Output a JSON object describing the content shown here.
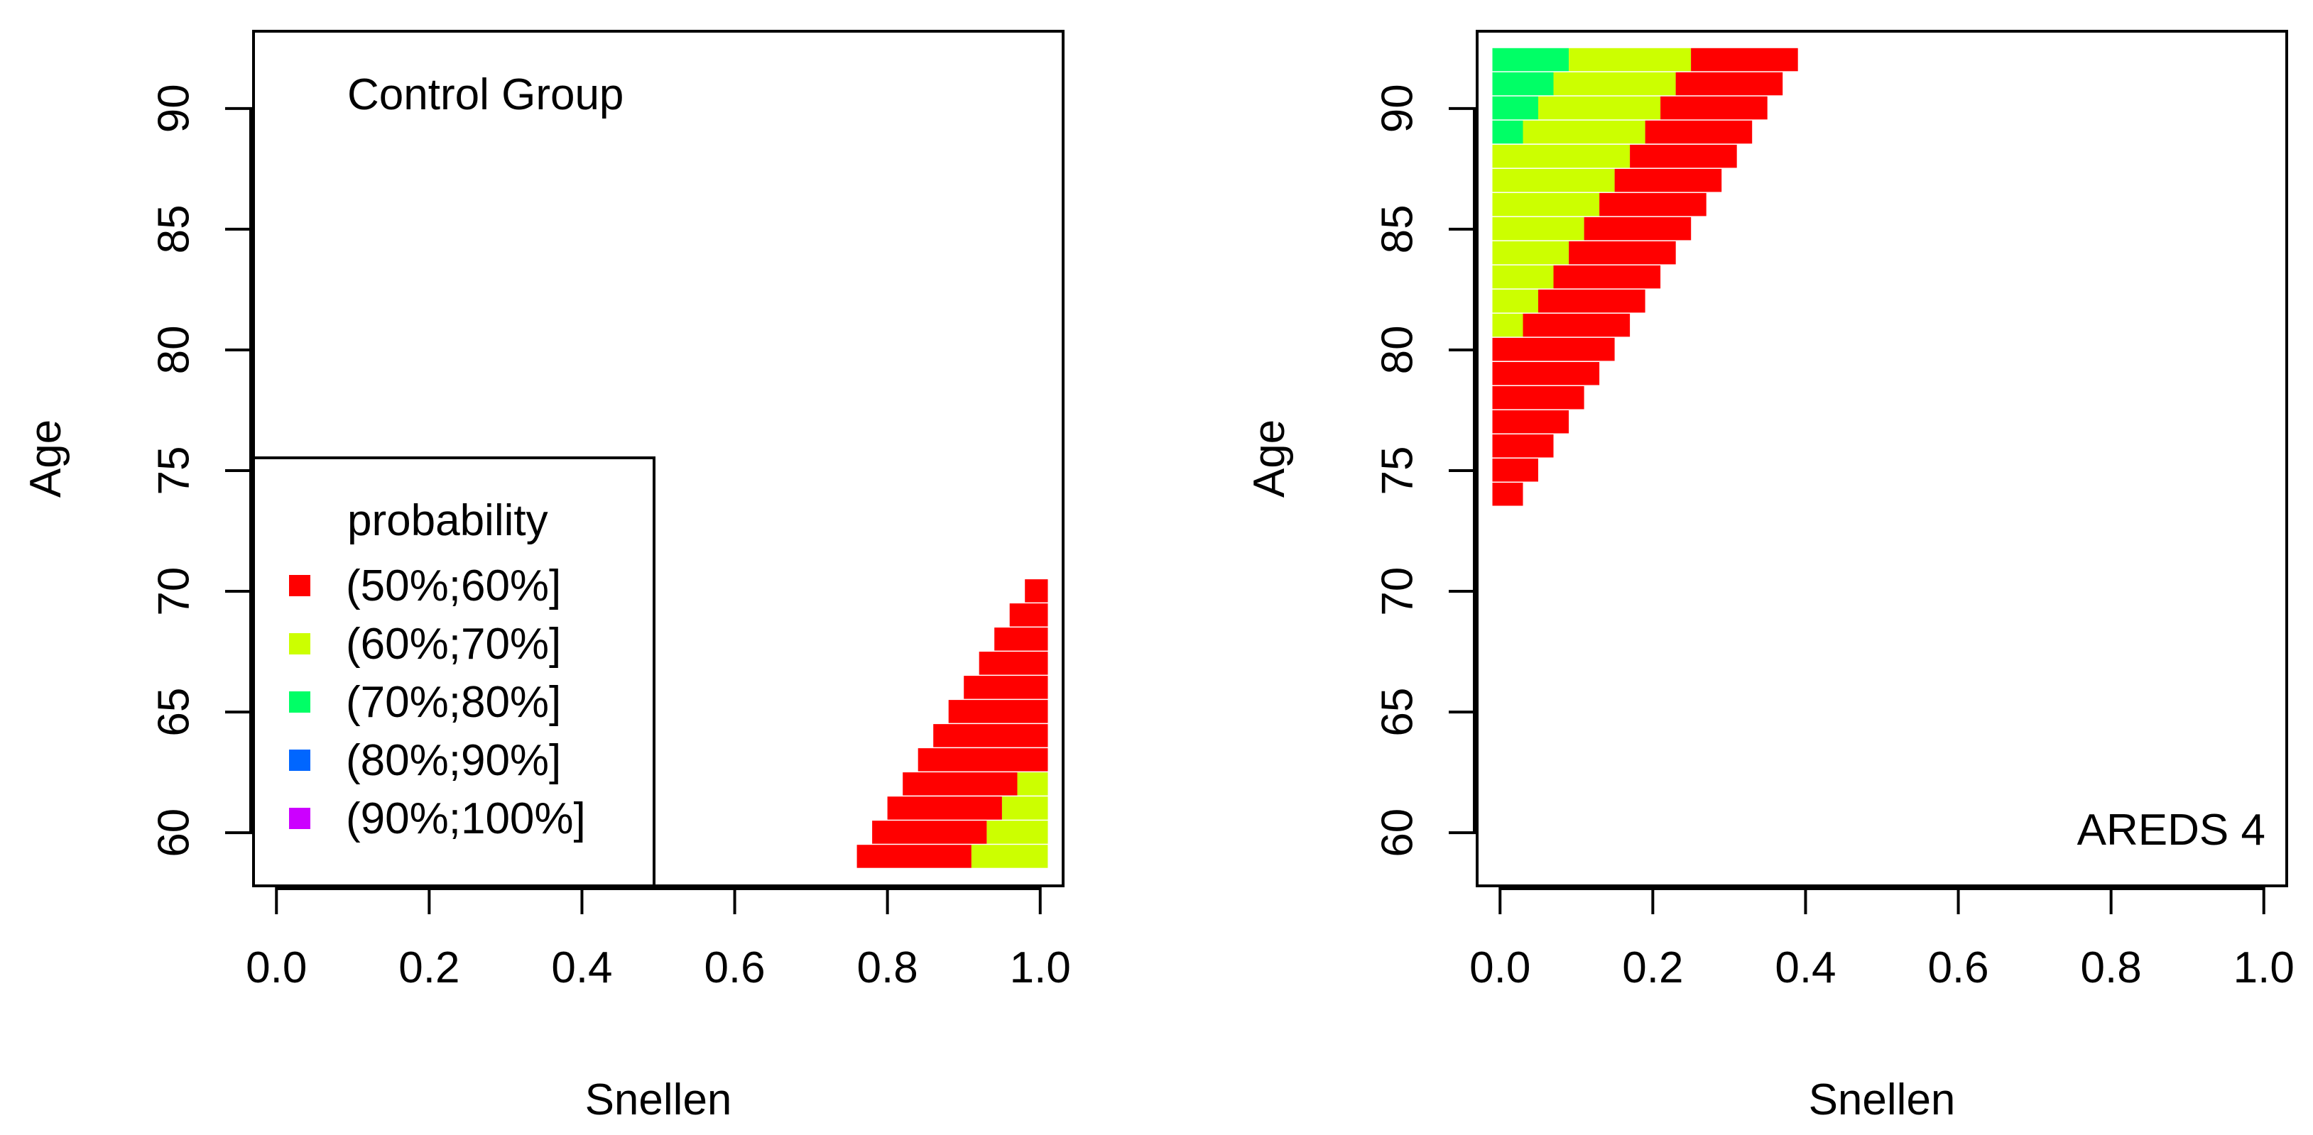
{
  "chart_data": [
    {
      "type": "heatmap",
      "panel_label": "Control Group",
      "xlabel": "Snellen",
      "ylabel": "Age",
      "xlim": [
        -0.03,
        1.03
      ],
      "ylim": [
        57.8,
        93.2
      ],
      "xticks": [
        0.0,
        0.2,
        0.4,
        0.6,
        0.8,
        1.0
      ],
      "xtick_labels": [
        "0.0",
        "0.2",
        "0.4",
        "0.6",
        "0.8",
        "1.0"
      ],
      "yticks": [
        60,
        65,
        70,
        75,
        80,
        85,
        90
      ],
      "ytick_labels": [
        "60",
        "65",
        "70",
        "75",
        "80",
        "85",
        "90"
      ],
      "legend": {
        "title": "probability",
        "position": "bottom-left",
        "entries": [
          {
            "label": "(50%;60%]",
            "color": "#ff0000"
          },
          {
            "label": "(60%;70%]",
            "color": "#ccff00"
          },
          {
            "label": "(70%;80%]",
            "color": "#00ff66"
          },
          {
            "label": "(80%;90%]",
            "color": "#0066ff"
          },
          {
            "label": "(90%;100%]",
            "color": "#cc00ff"
          }
        ]
      },
      "rows_y0": 58.5,
      "row_step": 1,
      "rows": [
        {
          "segments": [
            {
              "from": 0.76,
              "to": 0.91,
              "cat": 0
            },
            {
              "from": 0.91,
              "to": 1.01,
              "cat": 1
            }
          ]
        },
        {
          "segments": [
            {
              "from": 0.78,
              "to": 0.93,
              "cat": 0
            },
            {
              "from": 0.93,
              "to": 1.01,
              "cat": 1
            }
          ]
        },
        {
          "segments": [
            {
              "from": 0.8,
              "to": 0.95,
              "cat": 0
            },
            {
              "from": 0.95,
              "to": 1.01,
              "cat": 1
            }
          ]
        },
        {
          "segments": [
            {
              "from": 0.82,
              "to": 0.97,
              "cat": 0
            },
            {
              "from": 0.97,
              "to": 1.01,
              "cat": 1
            }
          ]
        },
        {
          "segments": [
            {
              "from": 0.84,
              "to": 1.01,
              "cat": 0
            }
          ]
        },
        {
          "segments": [
            {
              "from": 0.86,
              "to": 1.01,
              "cat": 0
            }
          ]
        },
        {
          "segments": [
            {
              "from": 0.88,
              "to": 1.01,
              "cat": 0
            }
          ]
        },
        {
          "segments": [
            {
              "from": 0.9,
              "to": 1.01,
              "cat": 0
            }
          ]
        },
        {
          "segments": [
            {
              "from": 0.92,
              "to": 1.01,
              "cat": 0
            }
          ]
        },
        {
          "segments": [
            {
              "from": 0.94,
              "to": 1.01,
              "cat": 0
            }
          ]
        },
        {
          "segments": [
            {
              "from": 0.96,
              "to": 1.01,
              "cat": 0
            }
          ]
        },
        {
          "segments": [
            {
              "from": 0.98,
              "to": 1.01,
              "cat": 0
            }
          ]
        }
      ]
    },
    {
      "type": "heatmap",
      "panel_label": "AREDS 4",
      "xlabel": "Snellen",
      "ylabel": "Age",
      "xlim": [
        -0.03,
        1.03
      ],
      "ylim": [
        57.8,
        93.2
      ],
      "xticks": [
        0.0,
        0.2,
        0.4,
        0.6,
        0.8,
        1.0
      ],
      "xtick_labels": [
        "0.0",
        "0.2",
        "0.4",
        "0.6",
        "0.8",
        "1.0"
      ],
      "yticks": [
        60,
        65,
        70,
        75,
        80,
        85,
        90
      ],
      "ytick_labels": [
        "60",
        "65",
        "70",
        "75",
        "80",
        "85",
        "90"
      ],
      "rows_y0": 73.5,
      "row_step": 1,
      "rows": [
        {
          "segments": [
            {
              "from": -0.01,
              "to": 0.03,
              "cat": 0
            }
          ]
        },
        {
          "segments": [
            {
              "from": -0.01,
              "to": 0.05,
              "cat": 0
            }
          ]
        },
        {
          "segments": [
            {
              "from": -0.01,
              "to": 0.07,
              "cat": 0
            }
          ]
        },
        {
          "segments": [
            {
              "from": -0.01,
              "to": 0.09,
              "cat": 0
            }
          ]
        },
        {
          "segments": [
            {
              "from": -0.01,
              "to": 0.11,
              "cat": 0
            }
          ]
        },
        {
          "segments": [
            {
              "from": -0.01,
              "to": 0.13,
              "cat": 0
            }
          ]
        },
        {
          "segments": [
            {
              "from": -0.01,
              "to": 0.15,
              "cat": 0
            }
          ]
        },
        {
          "segments": [
            {
              "from": -0.01,
              "to": 0.03,
              "cat": 1
            },
            {
              "from": 0.03,
              "to": 0.17,
              "cat": 0
            }
          ]
        },
        {
          "segments": [
            {
              "from": -0.01,
              "to": 0.05,
              "cat": 1
            },
            {
              "from": 0.05,
              "to": 0.19,
              "cat": 0
            }
          ]
        },
        {
          "segments": [
            {
              "from": -0.01,
              "to": 0.07,
              "cat": 1
            },
            {
              "from": 0.07,
              "to": 0.21,
              "cat": 0
            }
          ]
        },
        {
          "segments": [
            {
              "from": -0.01,
              "to": 0.09,
              "cat": 1
            },
            {
              "from": 0.09,
              "to": 0.23,
              "cat": 0
            }
          ]
        },
        {
          "segments": [
            {
              "from": -0.01,
              "to": 0.11,
              "cat": 1
            },
            {
              "from": 0.11,
              "to": 0.25,
              "cat": 0
            }
          ]
        },
        {
          "segments": [
            {
              "from": -0.01,
              "to": 0.13,
              "cat": 1
            },
            {
              "from": 0.13,
              "to": 0.27,
              "cat": 0
            }
          ]
        },
        {
          "segments": [
            {
              "from": -0.01,
              "to": 0.15,
              "cat": 1
            },
            {
              "from": 0.15,
              "to": 0.29,
              "cat": 0
            }
          ]
        },
        {
          "segments": [
            {
              "from": -0.01,
              "to": 0.17,
              "cat": 1
            },
            {
              "from": 0.17,
              "to": 0.31,
              "cat": 0
            }
          ]
        },
        {
          "segments": [
            {
              "from": -0.01,
              "to": 0.03,
              "cat": 2
            },
            {
              "from": 0.03,
              "to": 0.19,
              "cat": 1
            },
            {
              "from": 0.19,
              "to": 0.33,
              "cat": 0
            }
          ]
        },
        {
          "segments": [
            {
              "from": -0.01,
              "to": 0.05,
              "cat": 2
            },
            {
              "from": 0.05,
              "to": 0.21,
              "cat": 1
            },
            {
              "from": 0.21,
              "to": 0.35,
              "cat": 0
            }
          ]
        },
        {
          "segments": [
            {
              "from": -0.01,
              "to": 0.07,
              "cat": 2
            },
            {
              "from": 0.07,
              "to": 0.23,
              "cat": 1
            },
            {
              "from": 0.23,
              "to": 0.37,
              "cat": 0
            }
          ]
        },
        {
          "segments": [
            {
              "from": -0.01,
              "to": 0.09,
              "cat": 2
            },
            {
              "from": 0.09,
              "to": 0.25,
              "cat": 1
            },
            {
              "from": 0.25,
              "to": 0.39,
              "cat": 0
            }
          ]
        }
      ]
    }
  ]
}
